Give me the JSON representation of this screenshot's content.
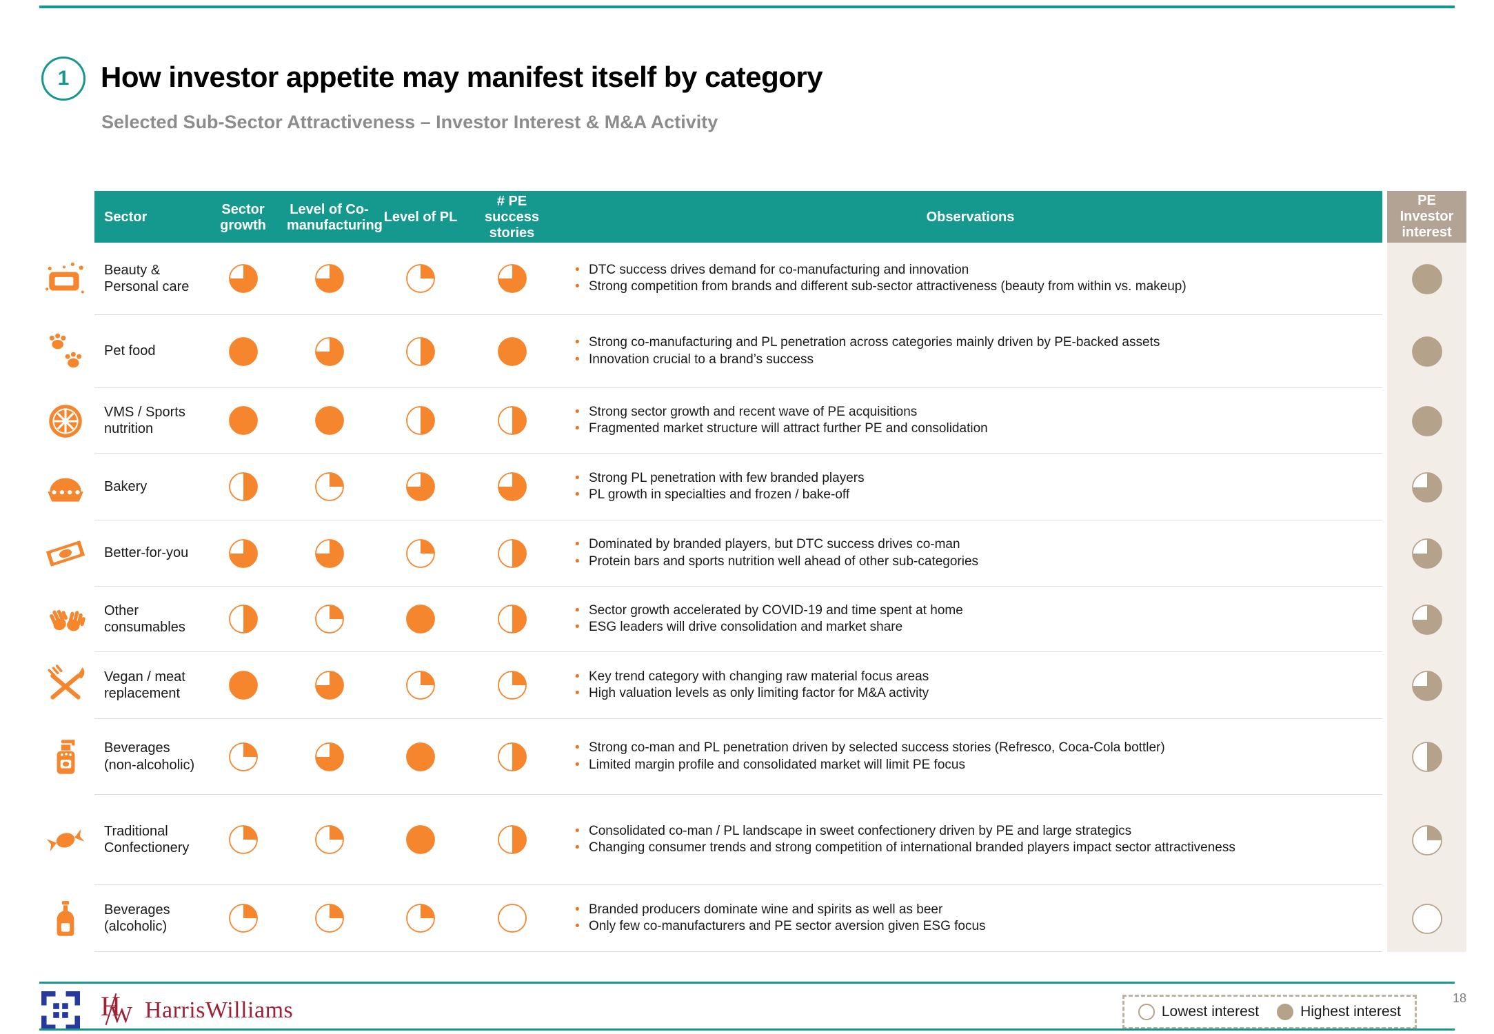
{
  "slide": {
    "step_number": "1",
    "title": "How investor appetite may manifest itself by category",
    "subtitle": "Selected Sub-Sector Attractiveness – Investor Interest & M&A Activity",
    "page_number": "18"
  },
  "colors": {
    "teal": "#15988E",
    "orange": "#F5862D",
    "tan": "#B5A28B",
    "tan_header_bg": "#B2A394",
    "tan_column_bg": "#F2EDE7",
    "logo_blue": "#28399E",
    "logo_red": "#9E2235"
  },
  "table": {
    "columns": {
      "sector": "Sector",
      "growth": "Sector growth",
      "coman": "Level of Co-manufacturing",
      "pl": "Level of PL",
      "pe_stories": "# PE success stories",
      "observations": "Observations",
      "pe_interest": "PE Investor interest"
    },
    "rows": [
      {
        "icon": "beauty-icon",
        "sector": "Beauty & Personal care",
        "balls": [
          0.75,
          0.75,
          0.25,
          0.75
        ],
        "pe_interest": 1,
        "observations": [
          "DTC success drives demand for co-manufacturing and innovation",
          "Strong competition from brands and different sub-sector attractiveness (beauty from within vs. makeup)"
        ]
      },
      {
        "icon": "paw-icon",
        "sector": "Pet food",
        "balls": [
          1,
          0.75,
          0.5,
          1
        ],
        "pe_interest": 1,
        "observations": [
          "Strong co-manufacturing and PL penetration across categories mainly driven by PE-backed assets",
          "Innovation crucial to a brand’s success"
        ]
      },
      {
        "icon": "citrus-icon",
        "sector": "VMS / Sports nutrition",
        "balls": [
          1,
          1,
          0.5,
          0.5
        ],
        "pe_interest": 1,
        "observations": [
          "Strong sector growth and recent wave of PE acquisitions",
          "Fragmented market structure will attract further PE and consolidation"
        ]
      },
      {
        "icon": "pie-icon",
        "sector": "Bakery",
        "balls": [
          0.5,
          0.25,
          0.75,
          0.75
        ],
        "pe_interest": 0.75,
        "observations": [
          "Strong PL penetration with few branded players",
          "PL growth in specialties and frozen / bake-off"
        ]
      },
      {
        "icon": "snack-bar-icon",
        "sector": "Better-for-you",
        "balls": [
          0.75,
          0.75,
          0.25,
          0.5
        ],
        "pe_interest": 0.75,
        "observations": [
          "Dominated by branded players, but DTC success drives co-man",
          "Protein bars and sports nutrition well ahead of other sub-categories"
        ]
      },
      {
        "icon": "hands-icon",
        "sector": "Other consumables",
        "balls": [
          0.5,
          0.25,
          1,
          0.5
        ],
        "pe_interest": 0.75,
        "observations": [
          "Sector growth accelerated by COVID-19 and time spent at home",
          "ESG leaders will drive consolidation and market share"
        ]
      },
      {
        "icon": "cutlery-icon",
        "sector": "Vegan / meat replacement",
        "balls": [
          1,
          0.75,
          0.25,
          0.25
        ],
        "pe_interest": 0.75,
        "observations": [
          "Key trend category with changing raw material focus areas",
          "High valuation levels as only limiting factor for M&A activity"
        ]
      },
      {
        "icon": "pump-bottle-icon",
        "sector": "Beverages (non-alcoholic)",
        "balls": [
          0.25,
          0.75,
          1,
          0.5
        ],
        "pe_interest": 0.5,
        "observations": [
          "Strong co-man and PL penetration driven by selected success stories (Refresco, Coca-Cola bottler)",
          "Limited margin profile and consolidated market will limit PE focus"
        ]
      },
      {
        "icon": "candy-icon",
        "sector": "Traditional Confectionery",
        "balls": [
          0.25,
          0.25,
          1,
          0.5
        ],
        "pe_interest": 0.25,
        "observations": [
          "Consolidated co-man / PL landscape in sweet confectionery driven by PE and large strategics",
          "Changing consumer trends and strong competition of international branded players impact sector attractiveness"
        ]
      },
      {
        "icon": "bottle-icon",
        "sector": "Beverages (alcoholic)",
        "balls": [
          0.25,
          0.25,
          0.25,
          0
        ],
        "pe_interest": 0,
        "observations": [
          "Branded producers dominate wine and spirits as well as beer",
          "Only few co-manufacturers and PE sector aversion given ESG focus"
        ]
      }
    ]
  },
  "legend": {
    "lowest_label": "Lowest interest",
    "highest_label": "Highest interest"
  },
  "footer": {
    "brand": "HarrisWilliams"
  }
}
